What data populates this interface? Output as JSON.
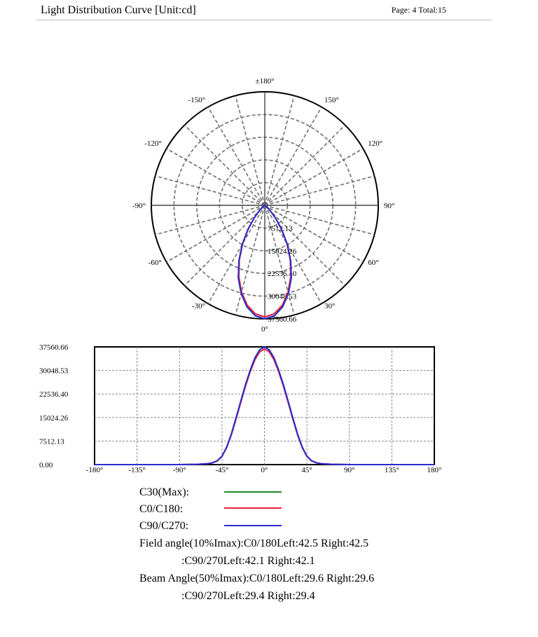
{
  "header": {
    "title": "Light Distribution Curve [Unit:cd]",
    "page_info": "Page: 4  Total:15"
  },
  "colors": {
    "c30": "#1f8a2b",
    "c0_c180": "#e8243a",
    "c90_c270": "#2a2ad2",
    "grid": "#707070"
  },
  "chart_data": [
    {
      "type": "polar",
      "angle_labels": [
        "±180°",
        "150°",
        "120°",
        "90°",
        "60°",
        "30°",
        "0°",
        "-30°",
        "-60°",
        "-90°",
        "-120°",
        "-150°"
      ],
      "ring_labels": [
        "7512.13",
        "15024.26",
        "22536.40",
        "30048.53",
        "37560.66"
      ],
      "rmax": 37560.66,
      "series": [
        {
          "name": "C30(Max):",
          "color_key": "c30",
          "angles": [
            0,
            5,
            10,
            15,
            20,
            25,
            30,
            35,
            40,
            45,
            50,
            55,
            60,
            70,
            80,
            90
          ],
          "values": [
            37560.66,
            36650,
            34100,
            30200,
            25600,
            20300,
            15000,
            9800,
            5600,
            2700,
            1200,
            600,
            320,
            120,
            40,
            0
          ]
        },
        {
          "name": "C0/C180",
          "color_key": "c0_c180",
          "angles": [
            0,
            5,
            10,
            15,
            20,
            25,
            30,
            35,
            40,
            45,
            50,
            55,
            60,
            70,
            80,
            90
          ],
          "values": [
            36900,
            36000,
            33500,
            29700,
            25100,
            19900,
            14600,
            9500,
            5400,
            2600,
            1150,
            560,
            300,
            110,
            35,
            0
          ]
        },
        {
          "name": "C90/C270",
          "color_key": "c90_c270",
          "angles": [
            0,
            5,
            10,
            15,
            20,
            25,
            30,
            35,
            40,
            45,
            50,
            55,
            60,
            70,
            80,
            90
          ],
          "values": [
            37560.66,
            36650,
            34100,
            30200,
            25600,
            20300,
            15000,
            9800,
            5600,
            2700,
            1200,
            600,
            320,
            120,
            40,
            0
          ]
        }
      ]
    },
    {
      "type": "line",
      "xlim": [
        -180,
        180
      ],
      "ylim": [
        0,
        37560.66
      ],
      "x_ticks": [
        "-180°",
        "-135°",
        "-90°",
        "-45°",
        "0°",
        "45°",
        "90°",
        "135°",
        "180°"
      ],
      "y_ticks": [
        "37560.66",
        "30048.53",
        "22536.40",
        "15024.26",
        "7512.13",
        "0.00"
      ],
      "x": [
        -180,
        -90,
        -80,
        -70,
        -60,
        -55,
        -50,
        -45,
        -40,
        -35,
        -30,
        -25,
        -20,
        -15,
        -10,
        -5,
        0,
        5,
        10,
        15,
        20,
        25,
        30,
        35,
        40,
        45,
        50,
        55,
        60,
        70,
        80,
        90,
        180
      ],
      "series": [
        {
          "name": "C30(Max):",
          "color_key": "c30",
          "values": [
            0,
            0,
            40,
            120,
            320,
            600,
            1200,
            2700,
            5600,
            9800,
            15000,
            20300,
            25600,
            30200,
            34100,
            36650,
            37560.66,
            36650,
            34100,
            30200,
            25600,
            20300,
            15000,
            9800,
            5600,
            2700,
            1200,
            600,
            320,
            120,
            40,
            0,
            0
          ]
        },
        {
          "name": "C0/C180",
          "color_key": "c0_c180",
          "values": [
            0,
            0,
            35,
            110,
            300,
            560,
            1150,
            2600,
            5400,
            9500,
            14600,
            19900,
            25100,
            29700,
            33500,
            36000,
            36900,
            36000,
            33500,
            29700,
            25100,
            19900,
            14600,
            9500,
            5400,
            2600,
            1150,
            560,
            300,
            110,
            35,
            0,
            0
          ]
        },
        {
          "name": "C90/C270",
          "color_key": "c90_c270",
          "values": [
            0,
            0,
            40,
            120,
            320,
            600,
            1200,
            2700,
            5600,
            9800,
            15000,
            20300,
            25600,
            30200,
            34100,
            36650,
            37560.66,
            36650,
            34100,
            30200,
            25600,
            20300,
            15000,
            9800,
            5600,
            2700,
            1200,
            600,
            320,
            120,
            40,
            0,
            0
          ]
        }
      ]
    }
  ],
  "legend": {
    "c30_label": "C30(Max):",
    "c0_label": "C0/C180:",
    "c90_label": "C90/C270:"
  },
  "stats": {
    "field_line1": "Field angle(10%Imax):C0/180Left:42.5 Right:42.5",
    "field_line2": ":C90/270Left:42.1 Right:42.1",
    "beam_line1": "Beam Angle(50%Imax):C0/180Left:29.6 Right:29.6",
    "beam_line2": ":C90/270Left:29.4 Right:29.4"
  }
}
